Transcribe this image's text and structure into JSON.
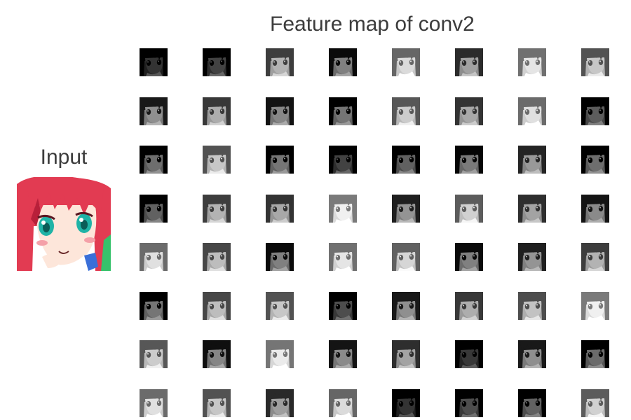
{
  "title": "Feature map of conv2",
  "input_label": "Input",
  "input_image": {
    "colors": {
      "hair": "#e23b52",
      "hair_dark": "#b8203a",
      "skin": "#fde6da",
      "eye": "#1fb3a6",
      "eye_dark": "#0b5c57",
      "blush": "#f4a0a8",
      "collar": "#ffffff",
      "ribbon": "#3a6fd8",
      "accent": "#36c26b"
    }
  },
  "feature_maps": {
    "rows": 8,
    "cols": 8,
    "tones": [
      [
        0.12,
        0.18,
        0.62,
        0.42,
        0.78,
        0.55,
        0.82,
        0.7
      ],
      [
        0.48,
        0.6,
        0.45,
        0.38,
        0.72,
        0.58,
        0.8,
        0.28
      ],
      [
        0.35,
        0.7,
        0.38,
        0.18,
        0.3,
        0.4,
        0.52,
        0.35
      ],
      [
        0.3,
        0.62,
        0.58,
        0.86,
        0.5,
        0.74,
        0.56,
        0.46
      ],
      [
        0.8,
        0.66,
        0.42,
        0.82,
        0.76,
        0.42,
        0.5,
        0.62
      ],
      [
        0.38,
        0.66,
        0.7,
        0.22,
        0.48,
        0.6,
        0.68,
        0.86
      ],
      [
        0.72,
        0.44,
        0.84,
        0.46,
        0.56,
        0.14,
        0.48,
        0.34
      ],
      [
        0.8,
        0.7,
        0.54,
        0.78,
        0.12,
        0.22,
        0.3,
        0.74
      ]
    ]
  }
}
